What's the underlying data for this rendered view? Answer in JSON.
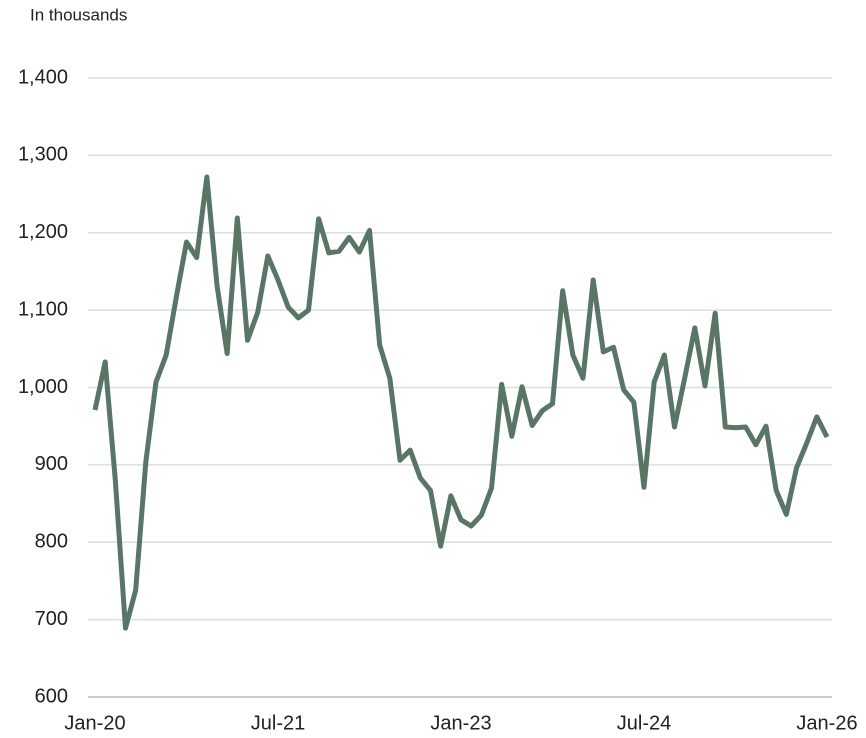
{
  "chart_data": {
    "type": "line",
    "y_axis_label": "In thousands",
    "categories": [
      "Jan-20",
      null,
      null,
      null,
      null,
      null,
      null,
      null,
      null,
      null,
      null,
      null,
      null,
      null,
      null,
      null,
      null,
      null,
      "Jul-21",
      null,
      null,
      null,
      null,
      null,
      null,
      null,
      null,
      null,
      null,
      null,
      null,
      null,
      null,
      null,
      null,
      null,
      "Jan-23",
      null,
      null,
      null,
      null,
      null,
      null,
      null,
      null,
      null,
      null,
      null,
      null,
      null,
      null,
      null,
      null,
      null,
      "Jul-24",
      null,
      null,
      null,
      null,
      null,
      null,
      null,
      null,
      null,
      null,
      null,
      null,
      null,
      null,
      null,
      null,
      null,
      "Jan-26"
    ],
    "series": [
      {
        "color": "#587566",
        "values": [
          971,
          1033,
          880,
          689,
          738,
          904,
          1007,
          1042,
          1117,
          1188,
          1168,
          1272,
          1132,
          1044,
          1219,
          1061,
          1097,
          1170,
          1139,
          1104,
          1090,
          1100,
          1218,
          1174,
          1176,
          1194,
          1175,
          1203,
          1055,
          1012,
          906,
          919,
          883,
          867,
          795,
          860,
          829,
          821,
          835,
          870,
          1004,
          937,
          1001,
          951,
          970,
          979,
          1125,
          1042,
          1012,
          1139,
          1046,
          1052,
          997,
          981,
          871,
          1007,
          1042,
          949,
          1012,
          1077,
          1002,
          1096,
          949,
          948,
          949,
          926,
          950,
          867,
          836,
          896,
          928,
          962,
          936
        ]
      }
    ],
    "ylim": [
      600,
      1400
    ],
    "yticks": [
      600,
      700,
      800,
      900,
      {
        "value": 1000,
        "label": "1,000"
      },
      {
        "value": 1100,
        "label": "1,100"
      },
      {
        "value": 1200,
        "label": "1,200"
      },
      {
        "value": 1300,
        "label": "1,300"
      },
      {
        "value": 1400,
        "label": "1,400"
      }
    ],
    "grid": true
  }
}
